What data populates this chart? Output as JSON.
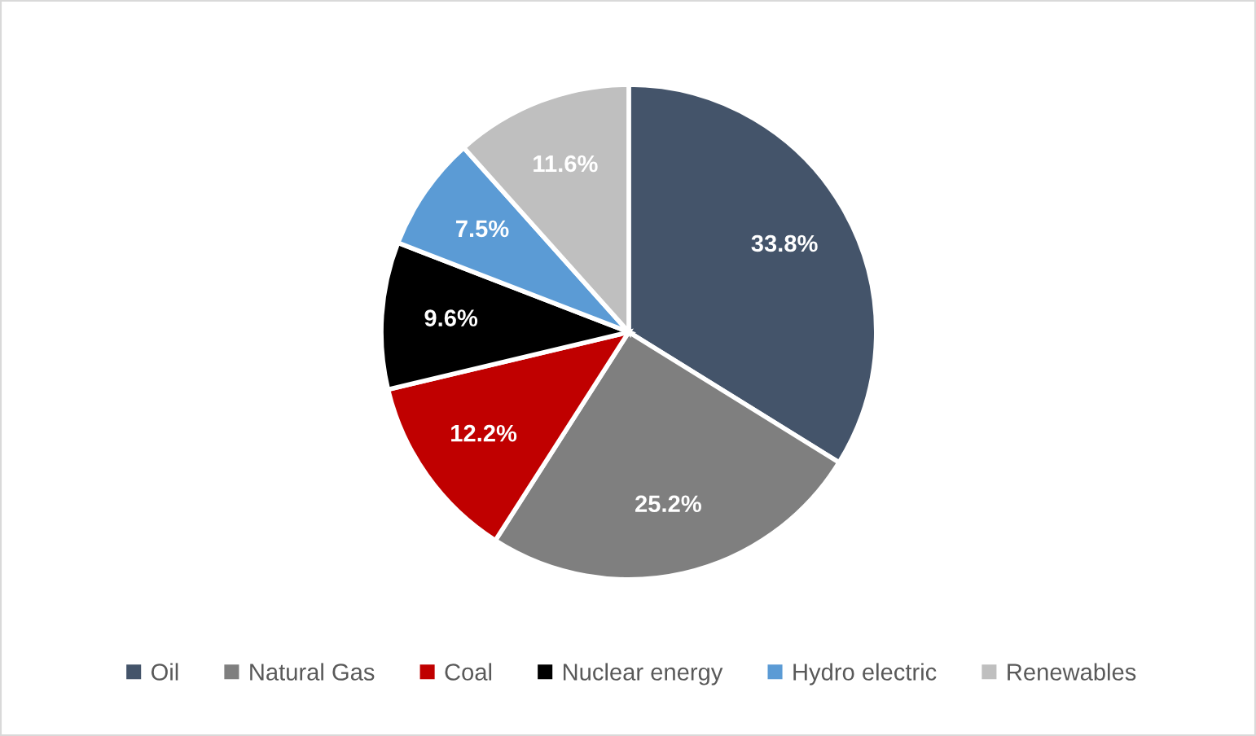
{
  "chart_data": {
    "type": "pie",
    "categories": [
      "Oil",
      "Natural Gas",
      "Coal",
      "Nuclear energy",
      "Hydro electric",
      "Renewables"
    ],
    "values": [
      33.8,
      25.2,
      12.2,
      9.6,
      7.5,
      11.6
    ],
    "colors": [
      "#44546a",
      "#7f7f7f",
      "#c00000",
      "#000000",
      "#5b9bd5",
      "#bfbfbf"
    ],
    "value_labels": [
      "33.8%",
      "25.2%",
      "12.2%",
      "9.6%",
      "7.5%",
      "11.6%"
    ],
    "legend": "bottom",
    "marker": "square"
  }
}
